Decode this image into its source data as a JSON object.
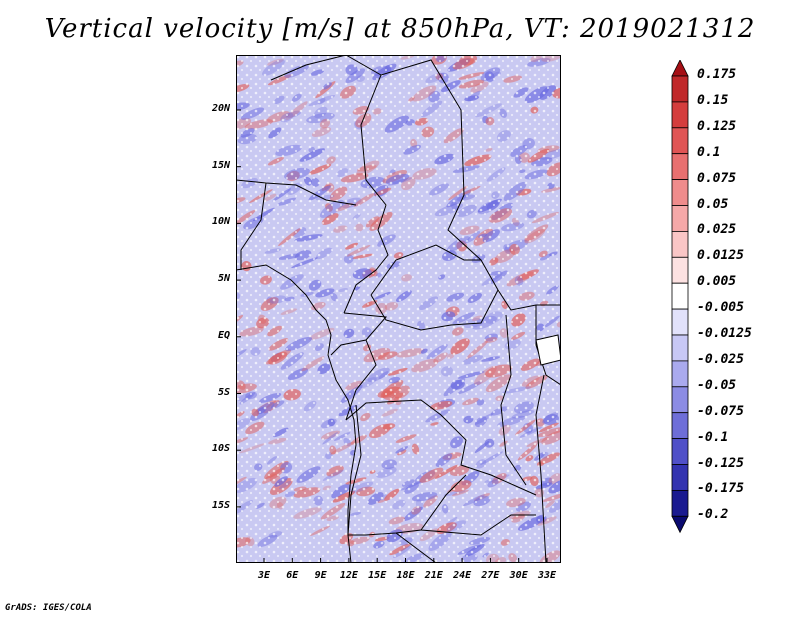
{
  "title": "Vertical velocity [m/s] at 850hPa, VT: 2019021312",
  "credit": "GrADS: IGES/COLA",
  "lat_labels": [
    "20N",
    "15N",
    "10N",
    "5N",
    "EQ",
    "5S",
    "10S",
    "15S"
  ],
  "lon_labels": [
    "3E",
    "6E",
    "9E",
    "12E",
    "15E",
    "18E",
    "21E",
    "24E",
    "27E",
    "30E",
    "33E"
  ],
  "colorbar": {
    "labels": [
      "0.175",
      "0.15",
      "0.125",
      "0.1",
      "0.075",
      "0.05",
      "0.025",
      "0.0125",
      "0.005",
      "-0.005",
      "-0.0125",
      "-0.025",
      "-0.05",
      "-0.075",
      "-0.1",
      "-0.125",
      "-0.175",
      "-0.2"
    ],
    "colors": [
      "#a50f15",
      "#c0282a",
      "#d43d3d",
      "#e05555",
      "#e87070",
      "#ef8c8c",
      "#f5a8a8",
      "#fac6c6",
      "#fde2e2",
      "#ffffff",
      "#e2e2fb",
      "#c8c8f5",
      "#aaaaee",
      "#8c8ce4",
      "#6e6ed8",
      "#5050c8",
      "#3333b0",
      "#1a1a90",
      "#0a0a70"
    ]
  },
  "field_colors": {
    "positive": "#e2605a",
    "negative": "#6a6ae0"
  }
}
